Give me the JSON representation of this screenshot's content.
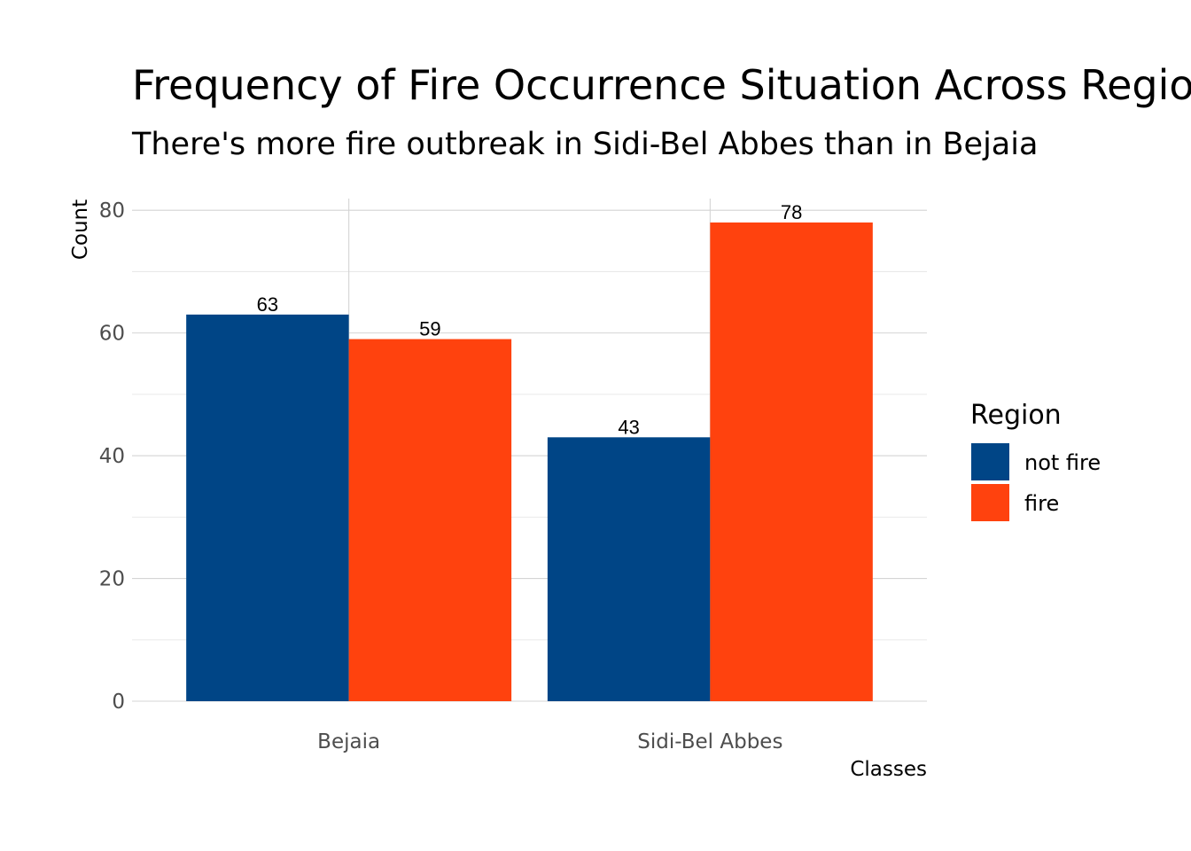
{
  "chart_data": {
    "type": "bar",
    "title": "Frequency of Fire Occurrence Situation Across Regions",
    "subtitle": "There's more fire outbreak in Sidi-Bel Abbes than in Bejaia",
    "xlabel": "Classes",
    "ylabel": "Count",
    "categories": [
      "Bejaia",
      "Sidi-Bel Abbes"
    ],
    "series": [
      {
        "name": "not fire",
        "color": "#004586",
        "values": [
          63,
          43
        ]
      },
      {
        "name": "fire",
        "color": "#ff420e",
        "values": [
          59,
          78
        ]
      }
    ],
    "ylim": [
      0,
      81.9
    ],
    "yticks": [
      0,
      20,
      40,
      60,
      80
    ],
    "grid": true,
    "legend": {
      "title": "Region",
      "position": "right"
    }
  }
}
